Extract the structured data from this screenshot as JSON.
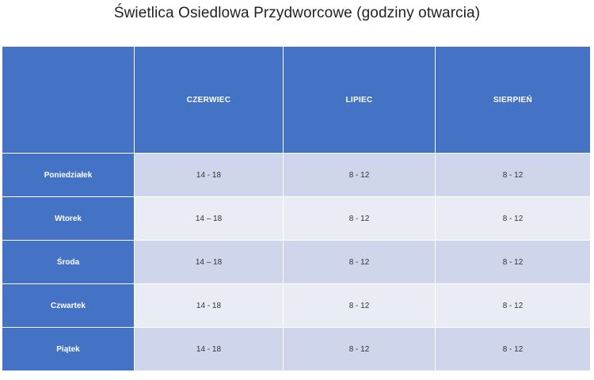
{
  "title": "Świetlica Osiedlowa Przydworcowe (godziny otwarcia)",
  "table": {
    "corner": "",
    "columns": [
      "CZERWIEC",
      "LIPIEC",
      "SIERPIEŃ"
    ],
    "rows": [
      {
        "day": "Poniedziałek",
        "values": [
          "14 - 18",
          "8 - 12",
          "8 - 12"
        ]
      },
      {
        "day": "Wtorek",
        "values": [
          "14 – 18",
          "8 - 12",
          "8 - 12"
        ]
      },
      {
        "day": "Środa",
        "values": [
          "14 – 18",
          "8 - 12",
          "8 - 12"
        ]
      },
      {
        "day": "Czwartek",
        "values": [
          "14 - 18",
          "8 - 12",
          "8 - 12"
        ]
      },
      {
        "day": "Piątek",
        "values": [
          "14 - 18",
          "8 - 12",
          "8 - 12"
        ]
      }
    ]
  },
  "colors": {
    "header_blue": "#4472c4",
    "band_dark": "#cfd5ea",
    "band_light": "#e9ebf5"
  }
}
